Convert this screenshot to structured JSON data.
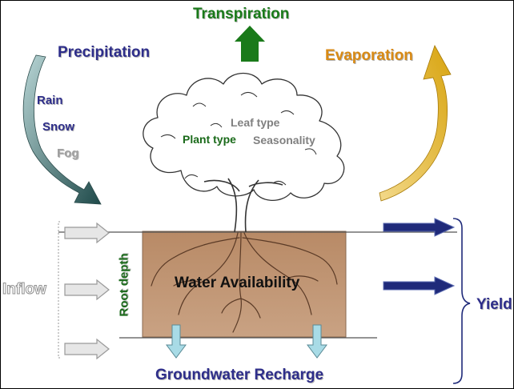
{
  "labels": {
    "transpiration": "Transpiration",
    "precipitation": "Precipitation",
    "evaporation": "Evaporation",
    "rain": "Rain",
    "snow": "Snow",
    "fog": "Fog",
    "leaf_type": "Leaf type",
    "plant_type": "Plant type",
    "seasonality": "Seasonality",
    "root_depth": "Root depth",
    "water_availability": "Water Availability",
    "inflow": "Inflow",
    "yield": "Yield",
    "groundwater_recharge": "Groundwater Recharge"
  },
  "colors": {
    "transpiration": "#1a7a1a",
    "precipitation": "#2e2e8a",
    "evaporation": "#d98a14",
    "evaporation_arrow": "#e8b81e",
    "precipitation_arrow": "#2f5c5c",
    "soil": "#c69c7a",
    "inflow": "#b0b0b0",
    "yield": "#1f2a7a",
    "recharge": "#a8dbe6",
    "root_depth": "#1a6a1a"
  },
  "icons": {
    "tree": "tree-illustration",
    "roots": "root-system"
  }
}
